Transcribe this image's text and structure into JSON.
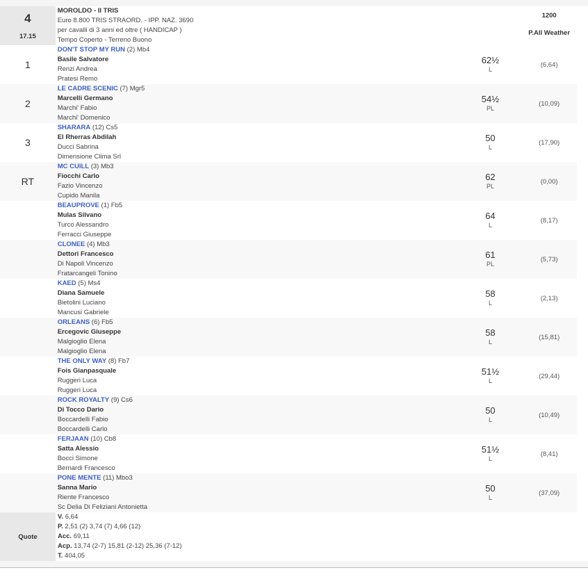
{
  "race": {
    "number": "4",
    "time": "17.15",
    "title": "MOROLDO - II TRIS",
    "prize": "Euro 8.800 TRIS STRAORD. - IPP. NAZ. 3690",
    "conditions": "per cavalli di 3 anni ed oltre ( HANDICAP )",
    "weather": "Tempo Coperto - Terreno Buono",
    "distance": "1200",
    "track": "P.All Weather"
  },
  "runners": [
    {
      "pos": "1",
      "horse": "DON'T STOP MY RUN",
      "info": "(2) Mb4",
      "jockey": "Basile Salvatore",
      "trainer": "Renzi Andrea",
      "owner": "Pratesi Remo",
      "weight": "62½",
      "tag": "L",
      "odds": "(6,64)"
    },
    {
      "pos": "2",
      "horse": "LE CADRE SCENIC",
      "info": "(7) Mgr5",
      "jockey": "Marcelli Germano",
      "trainer": "Marchi' Fabio",
      "owner": "Marchi' Domenico",
      "weight": "54½",
      "tag": "PL",
      "odds": "(10,09)"
    },
    {
      "pos": "3",
      "horse": "SHARARA",
      "info": "(12) Cs5",
      "jockey": "El Rherras Abdilah",
      "trainer": "Ducci Sabrina",
      "owner": "Dimensione Clima Srl",
      "weight": "50",
      "tag": "L",
      "odds": "(17,90)"
    },
    {
      "pos": "RT",
      "horse": "MC CUILL",
      "info": "(3) Mb3",
      "jockey": "Fiocchi Carlo",
      "trainer": "Fazio Vincenzo",
      "owner": "Cupido Manila",
      "weight": "62",
      "tag": "PL",
      "odds": "(0,00)"
    },
    {
      "pos": "",
      "horse": "BEAUPROVE",
      "info": "(1) Fb5",
      "jockey": "Mulas Silvano",
      "trainer": "Turco Alessandro",
      "owner": "Ferracci Giuseppe",
      "weight": "64",
      "tag": "L",
      "odds": "(8,17)"
    },
    {
      "pos": "",
      "horse": "CLONEE",
      "info": "(4) Mb3",
      "jockey": "Dettori Francesco",
      "trainer": "Di Napoli Vincenzo",
      "owner": "Fratarcangeli Tonino",
      "weight": "61",
      "tag": "PL",
      "odds": "(5,73)"
    },
    {
      "pos": "",
      "horse": "KAED",
      "info": "(5) Ms4",
      "jockey": "Diana Samuele",
      "trainer": "Bietolini Luciano",
      "owner": "Mancusi Gabriele",
      "weight": "58",
      "tag": "L",
      "odds": "(2,13)"
    },
    {
      "pos": "",
      "horse": "ORLEANS",
      "info": "(6) Fb5",
      "jockey": "Ercegovic Giuseppe",
      "trainer": "Malgioglio Elena",
      "owner": "Malgioglio Elena",
      "weight": "58",
      "tag": "L",
      "odds": "(15,81)"
    },
    {
      "pos": "",
      "horse": "THE ONLY WAY",
      "info": "(8) Fb7",
      "jockey": "Fois Gianpasquale",
      "trainer": "Ruggeri Luca",
      "owner": "Ruggeri Luca",
      "weight": "51½",
      "tag": "L",
      "odds": "(29,44)"
    },
    {
      "pos": "",
      "horse": "ROCK ROYALTY",
      "info": "(9) Cs6",
      "jockey": "Di Tocco Dario",
      "trainer": "Boccardelli Fabio",
      "owner": "Boccardelli Carlo",
      "weight": "50",
      "tag": "L",
      "odds": "(10,49)"
    },
    {
      "pos": "",
      "horse": "FERJAAN",
      "info": "(10) Cb8",
      "jockey": "Satta Alessio",
      "trainer": "Bocci Simone",
      "owner": "Bernardi Francesco",
      "weight": "51½",
      "tag": "L",
      "odds": "(8,41)"
    },
    {
      "pos": "",
      "horse": "PONE MENTE",
      "info": "(11) Mbo3",
      "jockey": "Sanna Mario",
      "trainer": "Riente Francesco",
      "owner": "Sc Delia Di Feliziani Antonietta",
      "weight": "50",
      "tag": "L",
      "odds": "(37,09)"
    }
  ],
  "quote": {
    "label": "Quote",
    "lines": [
      {
        "k": "V.",
        "v": "6,64"
      },
      {
        "k": "P.",
        "v": "2,51 (2)  3,74 (7)  4,66 (12)"
      },
      {
        "k": "Acc.",
        "v": "69,11"
      },
      {
        "k": "Acp.",
        "v": "13,74 (2-7)  15,81 (2-12)  25,36 (7-12)"
      },
      {
        "k": "T.",
        "v": "404,05"
      }
    ]
  }
}
